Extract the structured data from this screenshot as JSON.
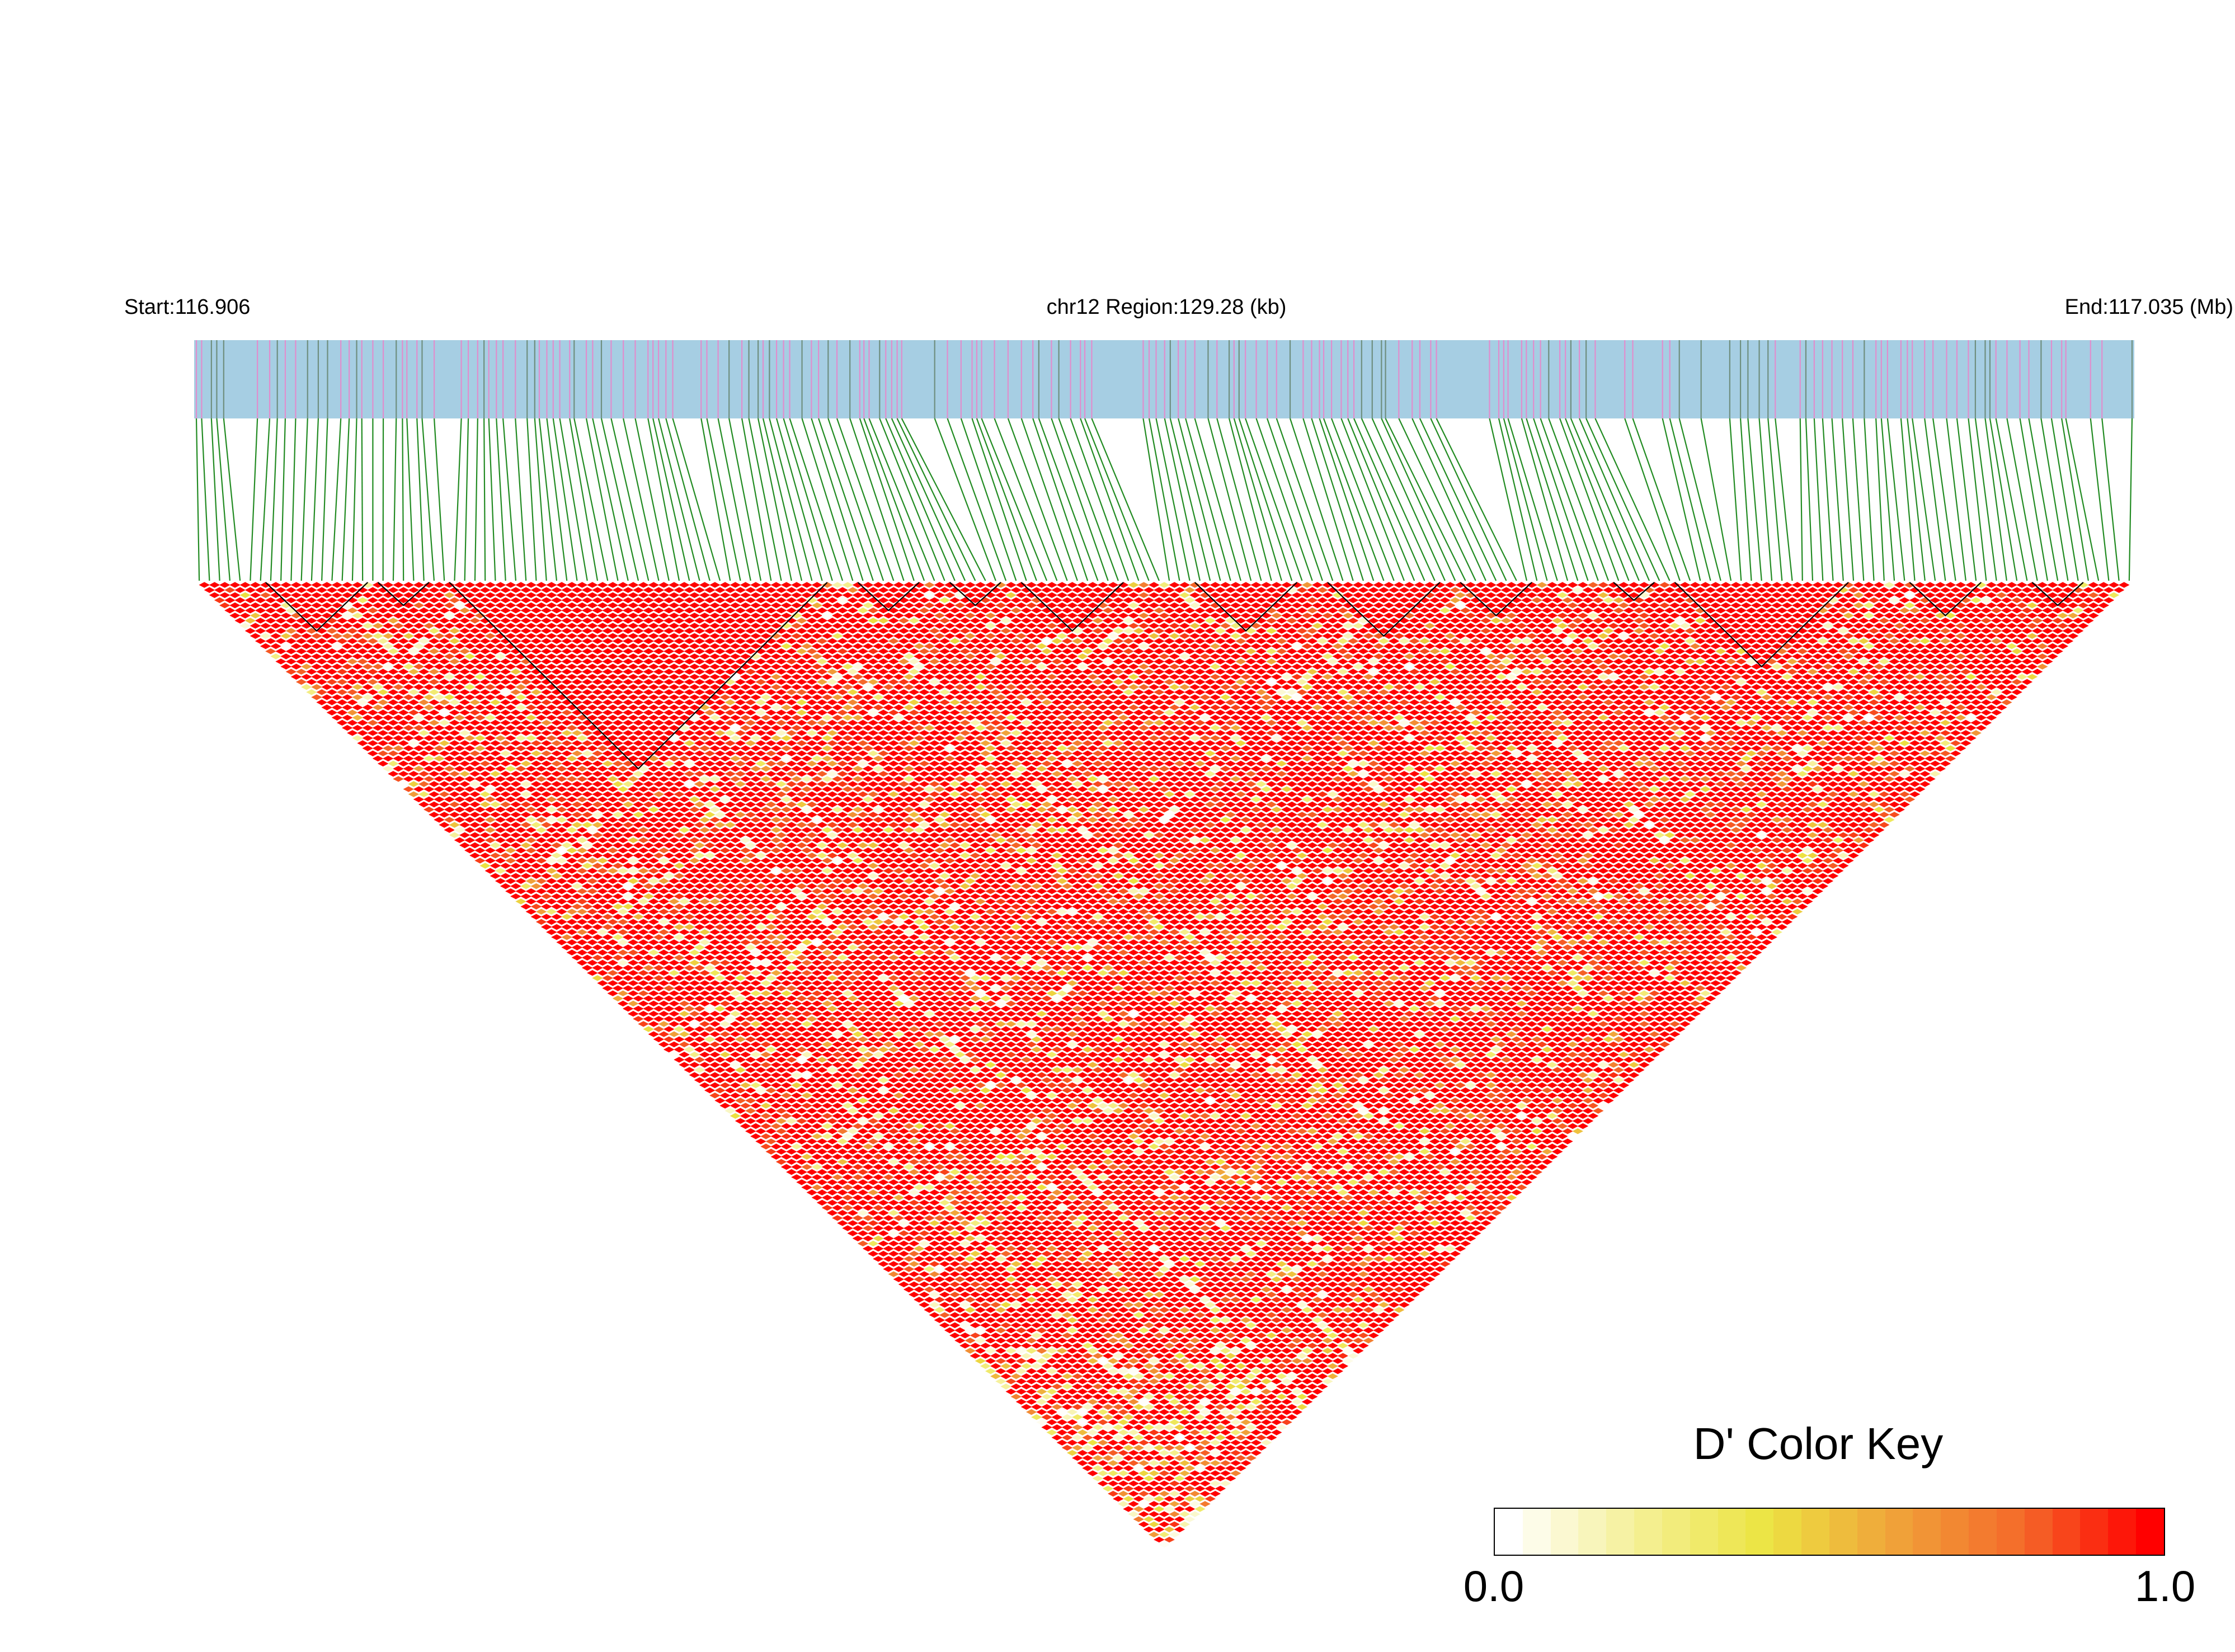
{
  "chart_data": {
    "type": "heatmap",
    "subtype": "ld-triangle",
    "statistic": "D'",
    "labels": {
      "start": "Start:116.906",
      "region": "chr12 Region:129.28 (kb)",
      "end": "End:117.035 (Mb)"
    },
    "region": {
      "chromosome": "chr12",
      "start_mb": 116.906,
      "end_mb": 117.035,
      "length_kb": 129.28
    },
    "color_key": {
      "title": "D' Color Key",
      "min_label": "0.0",
      "max_label": "1.0",
      "range": [
        0.0,
        1.0
      ],
      "colors": [
        "#ffffff",
        "#f5f096",
        "#ece442",
        "#f0a33a",
        "#f46a2a",
        "#ff0000"
      ]
    },
    "colors": {
      "gene_bar": "#a6cee3",
      "variant_tick": "#e08ecd",
      "connector": "#228b22",
      "high_ld": "#ff0000"
    },
    "grid": false,
    "legend_position": "bottom-right"
  }
}
